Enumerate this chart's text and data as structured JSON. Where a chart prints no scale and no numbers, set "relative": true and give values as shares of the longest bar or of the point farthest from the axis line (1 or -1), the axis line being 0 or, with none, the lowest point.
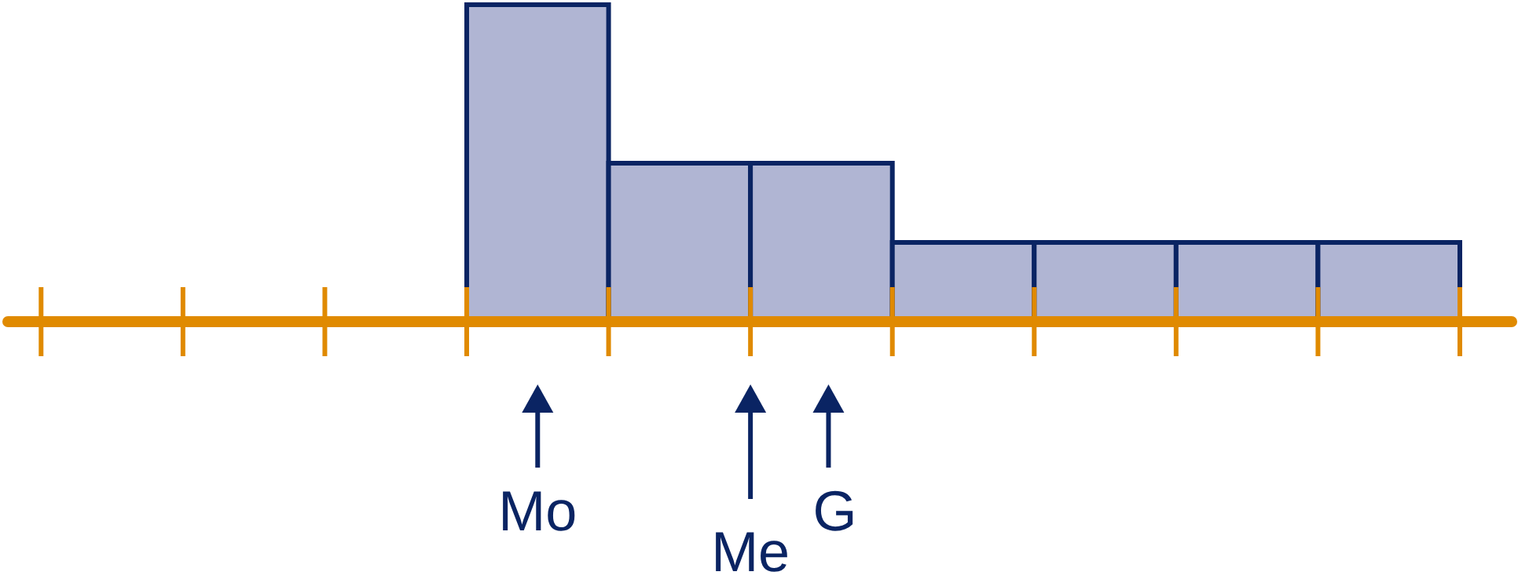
{
  "chart_data": {
    "type": "bar",
    "relative": true,
    "categories": [
      null,
      null,
      null,
      null,
      null,
      null,
      null
    ],
    "values": [
      1,
      0.5,
      0.5,
      0.25,
      0.25,
      0.25,
      0.25
    ],
    "color": "#b0b5d3",
    "annotations": [
      "Mo",
      "Me",
      "G"
    ]
  }
}
